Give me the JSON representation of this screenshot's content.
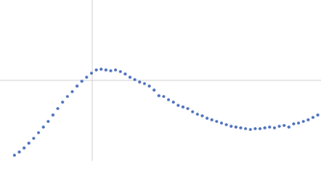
{
  "chart_data": {
    "type": "scatter",
    "x": [
      18,
      24,
      30,
      36,
      42,
      48,
      54,
      60,
      66,
      72,
      78,
      84,
      90,
      96,
      102,
      108,
      114,
      120,
      126,
      132,
      138,
      144,
      150,
      156,
      162,
      168,
      174,
      180,
      186,
      192,
      198,
      204,
      210,
      216,
      222,
      228,
      234,
      240,
      246,
      252,
      258,
      264,
      270,
      276,
      282,
      288,
      294,
      300,
      306,
      312,
      318,
      324,
      330,
      336,
      342,
      348,
      354,
      360,
      366,
      372,
      378,
      384,
      390,
      396
    ],
    "series": [
      {
        "color": "#3f66b8",
        "values": [
          7,
          11,
          16,
          22,
          28,
          35,
          42,
          49,
          57,
          65,
          73,
          80,
          86,
          93,
          99,
          104,
          109,
          113,
          114,
          113,
          112,
          113,
          111,
          108,
          104,
          101,
          98,
          96,
          93,
          88,
          81,
          80,
          76,
          73,
          69,
          67,
          65,
          61,
          58,
          56,
          53,
          51,
          49,
          47,
          45,
          43,
          42,
          41,
          40,
          39,
          40,
          40,
          41,
          42,
          41,
          43,
          44,
          42,
          46,
          47,
          49,
          51,
          54,
          57
        ]
      }
    ],
    "xlim": [
      0,
      400
    ],
    "ylim": [
      0,
      200
    ],
    "xticks": [
      115
    ],
    "yticks": [
      100
    ],
    "grid": true,
    "tick_labels": false
  }
}
